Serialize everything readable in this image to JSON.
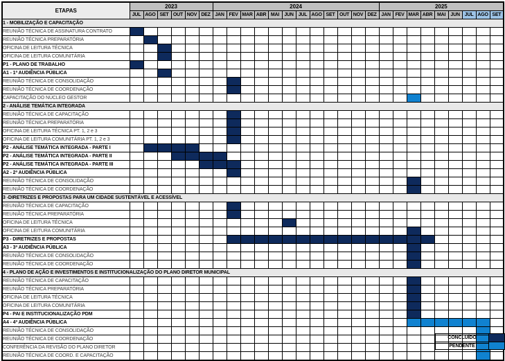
{
  "chart_data": {
    "type": "gantt-table",
    "title": "ETAPAS",
    "colors": {
      "concluido": "#0e2a5c",
      "pendente": "#1082d0",
      "header_gray": "#bfbfbf",
      "header_highlight_blue": "#9dc3e6",
      "section_band_gray": "#e8e8e8",
      "etapas_cell": "#ececec"
    },
    "years": [
      {
        "label": "2023",
        "months": 6
      },
      {
        "label": "2024",
        "months": 12
      },
      {
        "label": "2025",
        "months": 9
      }
    ],
    "months": [
      "JUL",
      "AGO",
      "SET",
      "OUT",
      "NOV",
      "DEZ",
      "JAN",
      "FEV",
      "MAR",
      "ABR",
      "MAI",
      "JUN",
      "JUL",
      "AGO",
      "SET",
      "OUT",
      "NOV",
      "DEZ",
      "JAN",
      "FEV",
      "MAR",
      "ABR",
      "MAI",
      "JUN",
      "JUL",
      "AGO",
      "SET"
    ],
    "highlighted_month_indices": [
      24,
      25,
      26
    ],
    "highlighted_months": [
      "JUL 2025",
      "AGO 2025",
      "SET 2025"
    ],
    "legend": [
      {
        "label": "CONCLUÍDO",
        "status": "concluido"
      },
      {
        "label": "PENDENTE",
        "status": "pendente"
      }
    ],
    "sections": [
      {
        "header": "1 - MOBILIZAÇÃO E CAPACITAÇÃO",
        "rows": [
          {
            "label": "REUNIÃO TÉCNICA DE ASSINATURA CONTRATO",
            "bold": false,
            "bars": [
              {
                "start_index": 0,
                "end_index": 0,
                "start": "JUL 2023",
                "end": "JUL 2023",
                "status": "concluido"
              }
            ]
          },
          {
            "label": "REUNIÃO TÉCNICA PREPARATÓRIA",
            "bold": false,
            "bars": [
              {
                "start_index": 1,
                "end_index": 1,
                "start": "AGO 2023",
                "end": "AGO 2023",
                "status": "concluido"
              }
            ]
          },
          {
            "label": "OFICINA DE LEITURA TÉCNICA",
            "bold": false,
            "bars": [
              {
                "start_index": 2,
                "end_index": 2,
                "start": "SET 2023",
                "end": "SET 2023",
                "status": "concluido"
              }
            ]
          },
          {
            "label": "OFICINA DE LEITURA COMUNITÁRIA",
            "bold": false,
            "bars": [
              {
                "start_index": 2,
                "end_index": 2,
                "start": "SET 2023",
                "end": "SET 2023",
                "status": "concluido"
              }
            ]
          },
          {
            "label": "P1 - PLANO DE TRABALHO",
            "bold": true,
            "bars": [
              {
                "start_index": 0,
                "end_index": 0,
                "start": "JUL 2023",
                "end": "JUL 2023",
                "status": "concluido"
              }
            ]
          },
          {
            "label": "A1 - 1ª AUDIÊNCIA PÚBLICA",
            "bold": true,
            "bars": [
              {
                "start_index": 2,
                "end_index": 2,
                "start": "SET 2023",
                "end": "SET 2023",
                "status": "concluido"
              }
            ]
          },
          {
            "label": "REUNIÃO TÉCNICA DE CONSOLIDAÇÃO",
            "bold": false,
            "bars": [
              {
                "start_index": 7,
                "end_index": 7,
                "start": "FEV 2024",
                "end": "FEV 2024",
                "status": "concluido"
              }
            ]
          },
          {
            "label": "REUNIÃO TÉCNICA DE COORDENAÇÃO",
            "bold": false,
            "bars": [
              {
                "start_index": 7,
                "end_index": 7,
                "start": "FEV 2024",
                "end": "FEV 2024",
                "status": "concluido"
              }
            ]
          },
          {
            "label": "CAPACITAÇÃO DO NÚCLEO GESTOR",
            "bold": false,
            "bars": [
              {
                "start_index": 20,
                "end_index": 20,
                "start": "MAR 2025",
                "end": "MAR 2025",
                "status": "pendente"
              }
            ]
          }
        ]
      },
      {
        "header": "2 - ANÁLISE TEMÁTICA INTEGRADA",
        "rows": [
          {
            "label": "REUNIÃO TÉCNICA DE CAPACITAÇÃO",
            "bold": false,
            "bars": [
              {
                "start_index": 7,
                "end_index": 7,
                "start": "FEV 2024",
                "end": "FEV 2024",
                "status": "concluido"
              }
            ]
          },
          {
            "label": "REUNIÃO TÉCNICA PREPARATÓRIA",
            "bold": false,
            "bars": [
              {
                "start_index": 7,
                "end_index": 7,
                "start": "FEV 2024",
                "end": "FEV 2024",
                "status": "concluido"
              }
            ]
          },
          {
            "label": "OFICINA DE LEITURA TÉCNICA PT. 1, 2 e 3",
            "bold": false,
            "bars": [
              {
                "start_index": 7,
                "end_index": 7,
                "start": "FEV 2024",
                "end": "FEV 2024",
                "status": "concluido"
              }
            ]
          },
          {
            "label": "OFICINA DE LEITURA COMUNITÁRIA PT. 1, 2 e 3",
            "bold": false,
            "bars": [
              {
                "start_index": 7,
                "end_index": 7,
                "start": "FEV 2024",
                "end": "FEV 2024",
                "status": "concluido"
              }
            ]
          },
          {
            "label": "P2 - ANÁLISE TEMÁTICA INTEGRADA - PARTE I",
            "bold": true,
            "bars": [
              {
                "start_index": 1,
                "end_index": 4,
                "start": "AGO 2023",
                "end": "NOV 2023",
                "status": "concluido"
              }
            ]
          },
          {
            "label": "P2 - ANÁLISE TEMÁTICA INTEGRADA - PARTE II",
            "bold": true,
            "bars": [
              {
                "start_index": 3,
                "end_index": 6,
                "start": "OUT 2023",
                "end": "JAN 2024",
                "status": "concluido"
              }
            ]
          },
          {
            "label": "P2 - ANÁLISE TEMÁTICA INTEGRADA - PARTE III",
            "bold": true,
            "bars": [
              {
                "start_index": 5,
                "end_index": 7,
                "start": "DEZ 2023",
                "end": "FEV 2024",
                "status": "concluido"
              }
            ]
          },
          {
            "label": "A2 - 2ª AUDIÊNCIA PÚBLICA",
            "bold": true,
            "bars": [
              {
                "start_index": 7,
                "end_index": 7,
                "start": "FEV 2024",
                "end": "FEV 2024",
                "status": "concluido"
              }
            ]
          },
          {
            "label": "REUNIÃO TÉCNICA DE CONSOLIDAÇÃO",
            "bold": false,
            "bars": [
              {
                "start_index": 20,
                "end_index": 20,
                "start": "MAR 2025",
                "end": "MAR 2025",
                "status": "concluido"
              }
            ]
          },
          {
            "label": "REUNIÃO TÉCNICA DE COORDENAÇÃO",
            "bold": false,
            "bars": [
              {
                "start_index": 20,
                "end_index": 20,
                "start": "MAR 2025",
                "end": "MAR 2025",
                "status": "concluido"
              }
            ]
          }
        ]
      },
      {
        "header": "3 -DIRETRIZES E PROPOSTAS PARA UM CIDADE SUSTENTÁVEL E ACESSÍVEL",
        "rows": [
          {
            "label": "REUNIÃO TÉCNICA DE CAPACITAÇÃO",
            "bold": false,
            "bars": [
              {
                "start_index": 7,
                "end_index": 7,
                "start": "FEV 2024",
                "end": "FEV 2024",
                "status": "concluido"
              }
            ]
          },
          {
            "label": "REUNIÃO TÉCNICA PREPARATÓRIA",
            "bold": false,
            "bars": [
              {
                "start_index": 7,
                "end_index": 7,
                "start": "FEV 2024",
                "end": "FEV 2024",
                "status": "concluido"
              }
            ]
          },
          {
            "label": "OFICINA DE LEITURA TÉCNICA",
            "bold": false,
            "bars": [
              {
                "start_index": 11,
                "end_index": 11,
                "start": "JUN 2024",
                "end": "JUN 2024",
                "status": "concluido"
              }
            ]
          },
          {
            "label": "OFICINA DE LEITURA COMUNITÁRIA",
            "bold": false,
            "bars": [
              {
                "start_index": 20,
                "end_index": 20,
                "start": "MAR 2025",
                "end": "MAR 2025",
                "status": "concluido"
              }
            ]
          },
          {
            "label": "P3 - DIRETRIZES E PROPOSTAS",
            "bold": true,
            "bars": [
              {
                "start_index": 7,
                "end_index": 21,
                "start": "FEV 2024",
                "end": "ABR 2025",
                "status": "concluido"
              }
            ]
          },
          {
            "label": "A3 - 3ª AUDIÊNCIA PÚBLICA",
            "bold": true,
            "bars": [
              {
                "start_index": 20,
                "end_index": 20,
                "start": "MAR 2025",
                "end": "MAR 2025",
                "status": "concluido"
              }
            ]
          },
          {
            "label": "REUNIÃO TÉCNICA DE CONSOLIDAÇÃO",
            "bold": false,
            "bars": [
              {
                "start_index": 20,
                "end_index": 20,
                "start": "MAR 2025",
                "end": "MAR 2025",
                "status": "concluido"
              }
            ]
          },
          {
            "label": "REUNIÃO TÉCNICA DE COORDENAÇÃO",
            "bold": false,
            "bars": [
              {
                "start_index": 20,
                "end_index": 20,
                "start": "MAR 2025",
                "end": "MAR 2025",
                "status": "concluido"
              }
            ]
          }
        ]
      },
      {
        "header": "4 - PLANO DE AÇÃO E INVESTIMENTOS E INSTITUCIONALIZAÇÃO DO PLANO DIRETOR MUNICIPAL",
        "rows": [
          {
            "label": "REUNIÃO TÉCNICA DE CAPACITAÇÃO",
            "bold": false,
            "bars": [
              {
                "start_index": 20,
                "end_index": 20,
                "start": "MAR 2025",
                "end": "MAR 2025",
                "status": "concluido"
              }
            ]
          },
          {
            "label": "REUNIÃO TÉCNICA PREPARATÓRIA",
            "bold": false,
            "bars": [
              {
                "start_index": 20,
                "end_index": 20,
                "start": "MAR 2025",
                "end": "MAR 2025",
                "status": "concluido"
              }
            ]
          },
          {
            "label": "OFICINA DE LEITURA TÉCNICA",
            "bold": false,
            "bars": [
              {
                "start_index": 20,
                "end_index": 20,
                "start": "MAR 2025",
                "end": "MAR 2025",
                "status": "concluido"
              }
            ]
          },
          {
            "label": "OFICINA DE LEITURA COMUNITÁRIA",
            "bold": false,
            "bars": [
              {
                "start_index": 20,
                "end_index": 20,
                "start": "MAR 2025",
                "end": "MAR 2025",
                "status": "concluido"
              }
            ]
          },
          {
            "label": "P4 - PAI E INSTITUCIONALIZAÇÃO PDM",
            "bold": true,
            "bars": [
              {
                "start_index": 20,
                "end_index": 20,
                "start": "MAR 2025",
                "end": "MAR 2025",
                "status": "concluido"
              }
            ]
          },
          {
            "label": "A4 - 4ª AUDIÊNCIA PÚBLICA",
            "bold": true,
            "bars": [
              {
                "start_index": 20,
                "end_index": 25,
                "start": "MAR 2025",
                "end": "AGO 2025",
                "status": "pendente"
              }
            ]
          },
          {
            "label": "REUNIÃO TÉCNICA DE CONSOLIDAÇÃO",
            "bold": false,
            "bars": [
              {
                "start_index": 25,
                "end_index": 25,
                "start": "AGO 2025",
                "end": "AGO 2025",
                "status": "pendente"
              }
            ]
          },
          {
            "label": "REUNIÃO TÉCNICA DE COORDENAÇÃO",
            "bold": false,
            "bars": [
              {
                "start_index": 25,
                "end_index": 25,
                "start": "AGO 2025",
                "end": "AGO 2025",
                "status": "pendente"
              }
            ]
          },
          {
            "label": "CONFERÊNCIA DA REVISÃO DO PLANO DIRETOR",
            "bold": false,
            "bars": [
              {
                "start_index": 25,
                "end_index": 25,
                "start": "AGO 2025",
                "end": "AGO 2025",
                "status": "pendente"
              }
            ]
          },
          {
            "label": "REUNIÃO TÉCNICA DE COORD. E CAPACITAÇÃO",
            "bold": false,
            "bars": [
              {
                "start_index": 25,
                "end_index": 25,
                "start": "AGO 2025",
                "end": "AGO 2025",
                "status": "pendente"
              }
            ]
          }
        ]
      }
    ]
  }
}
